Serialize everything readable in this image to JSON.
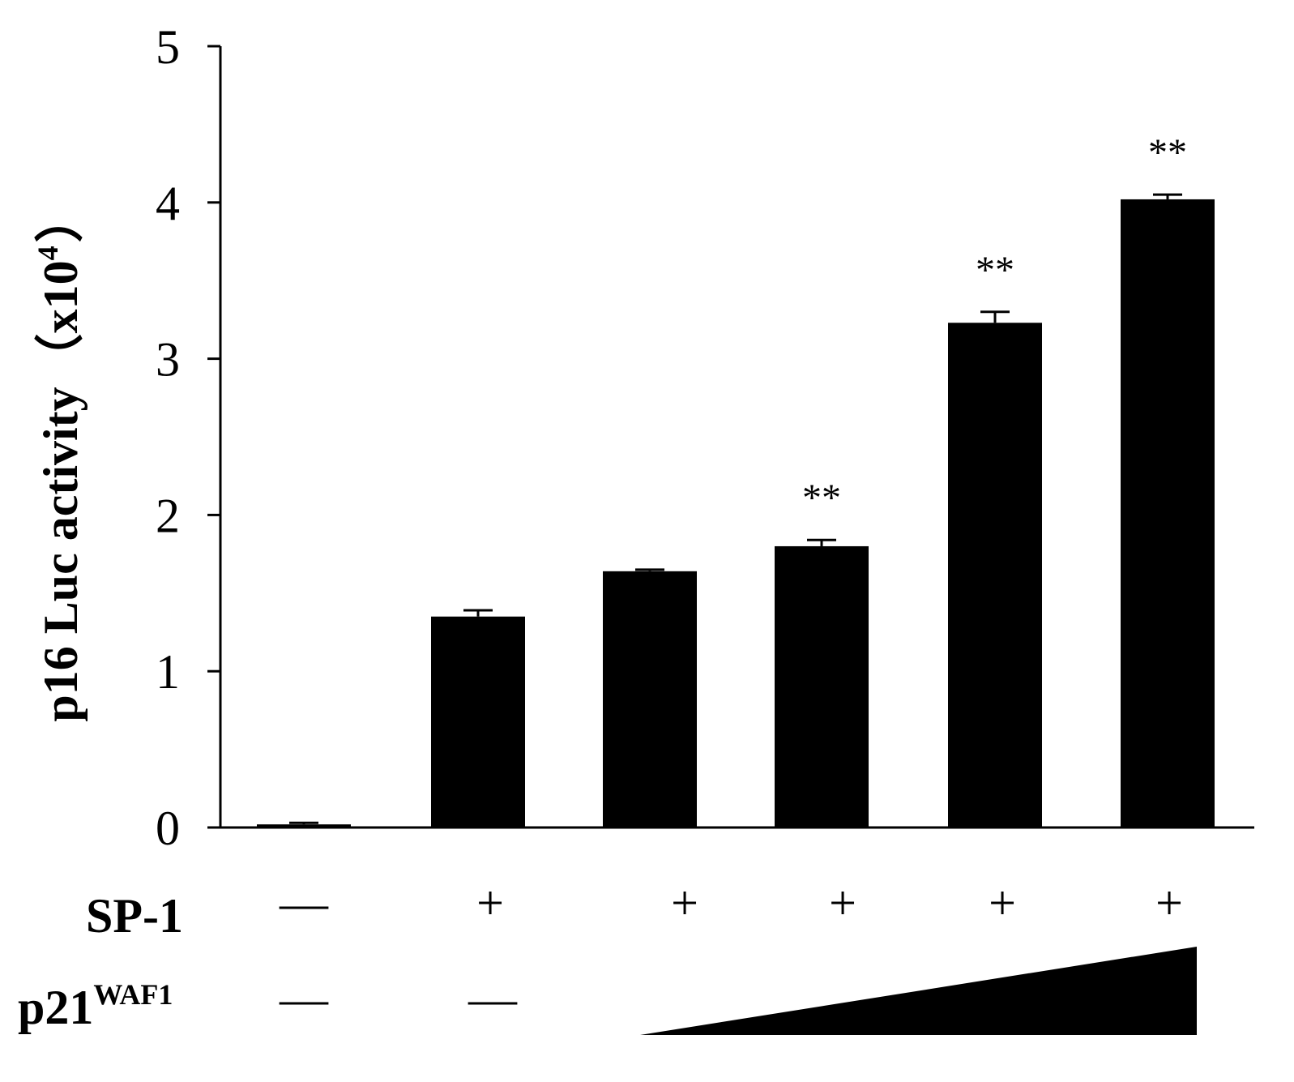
{
  "chart_data": {
    "type": "bar",
    "ylabel_main": "p16  Luc activity",
    "ylabel_paren_open": "（",
    "ylabel_unit_base": "x10",
    "ylabel_unit_exp": "4",
    "ylabel_paren_close": "）",
    "ylim": [
      0,
      5
    ],
    "yticks": [
      "0",
      "1",
      "2",
      "3",
      "4",
      "5"
    ],
    "grid": false,
    "legend": "none",
    "bar_color": "#000000",
    "values": [
      0.02,
      1.35,
      1.64,
      1.8,
      3.23,
      4.02
    ],
    "errors": [
      0.01,
      0.04,
      0.01,
      0.04,
      0.07,
      0.03
    ],
    "annotations": [
      "",
      "",
      "",
      "**",
      "**",
      "**"
    ],
    "conditions": {
      "sp1_label": "SP-1",
      "sp1_values": [
        "—",
        "+",
        "+",
        "+",
        "+",
        "+"
      ],
      "p21_label_base": "p21",
      "p21_label_sup": "WAF1",
      "p21_values": [
        "—",
        "—"
      ],
      "p21_gradient": "increasing"
    }
  }
}
